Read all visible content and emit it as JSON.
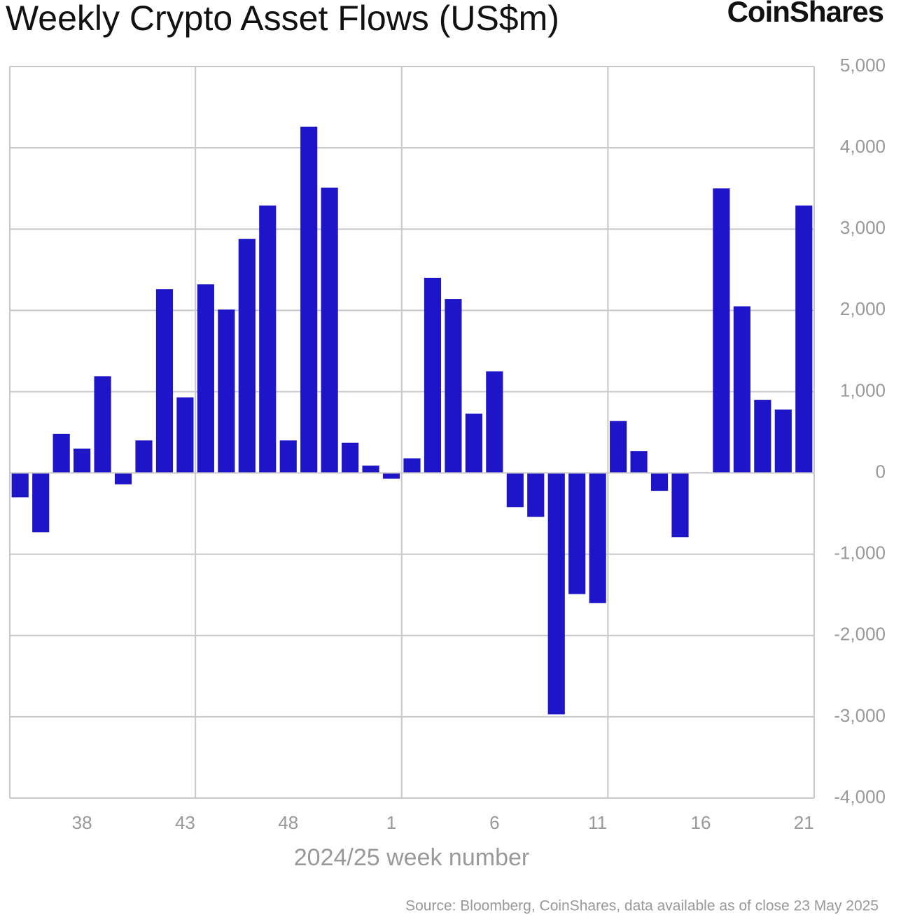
{
  "logo": "CoinShares",
  "chart_data": {
    "type": "bar",
    "title": "Weekly Crypto Asset Flows (US$m)",
    "xlabel": "2024/25 week number",
    "source": "Source: Bloomberg, CoinShares, data available as of close 23 May 2025",
    "categories": [
      null,
      null,
      null,
      "38",
      null,
      null,
      null,
      null,
      "43",
      null,
      null,
      null,
      null,
      "48",
      null,
      null,
      null,
      null,
      "1",
      null,
      null,
      null,
      null,
      "6",
      null,
      null,
      null,
      null,
      "11",
      null,
      null,
      null,
      null,
      "16",
      null,
      null,
      null,
      null,
      "21"
    ],
    "values": [
      -300,
      -730,
      480,
      300,
      1190,
      -140,
      400,
      2260,
      930,
      2320,
      2010,
      2880,
      3290,
      400,
      4260,
      3510,
      370,
      90,
      -70,
      180,
      2400,
      2140,
      730,
      1250,
      -420,
      -540,
      -2970,
      -1490,
      -1600,
      640,
      270,
      -220,
      -790,
      10,
      3500,
      2050,
      900,
      780,
      3290
    ],
    "color": "#1e14c8",
    "ylim": [
      -4000,
      5000
    ],
    "yticks": [
      {
        "value": -4000,
        "label": "-4,000"
      },
      {
        "value": -3000,
        "label": "-3,000"
      },
      {
        "value": -2000,
        "label": "-2,000"
      },
      {
        "value": -1000,
        "label": "-1,000"
      },
      0,
      {
        "value": 1000,
        "label": "1,000"
      },
      {
        "value": 2000,
        "label": "2,000"
      },
      {
        "value": 3000,
        "label": "3,000"
      },
      {
        "value": 4000,
        "label": "4,000"
      },
      {
        "value": 5000,
        "label": "5,000"
      }
    ],
    "grid": true
  }
}
